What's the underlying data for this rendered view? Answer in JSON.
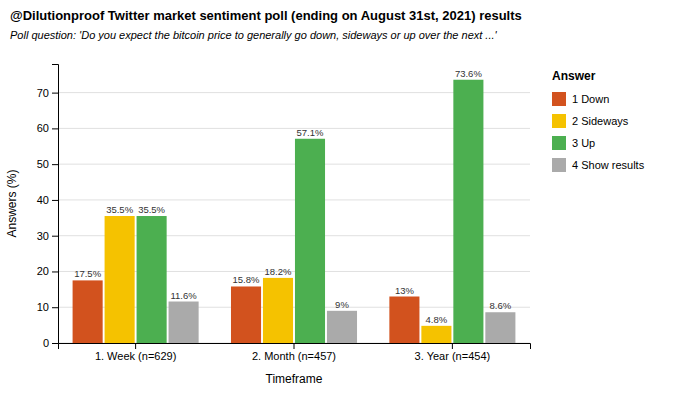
{
  "chart_data": {
    "type": "bar",
    "title": "@Dilutionproof Twitter market sentiment poll (ending on August 31st, 2021) results",
    "subtitle": "Poll question: 'Do you expect the bitcoin price to generally go down, sideways or up over the next ...'",
    "xlabel": "Timeframe",
    "ylabel": "Answers (%)",
    "legend_title": "Answer",
    "categories": [
      "1. Week (n=629)",
      "2. Month (n=457)",
      "3. Year (n=454)"
    ],
    "series": [
      {
        "name": "1 Down",
        "color": "#D2521E",
        "values": [
          17.5,
          15.8,
          13.0
        ],
        "value_labels": [
          "17.5%",
          "15.8%",
          "13%"
        ]
      },
      {
        "name": "2 Sideways",
        "color": "#F5C200",
        "values": [
          35.5,
          18.2,
          4.8
        ],
        "value_labels": [
          "35.5%",
          "18.2%",
          "4.8%"
        ]
      },
      {
        "name": "3 Up",
        "color": "#4CAF50",
        "values": [
          35.5,
          57.1,
          73.6
        ],
        "value_labels": [
          "35.5%",
          "57.1%",
          "73.6%"
        ]
      },
      {
        "name": "4 Show results",
        "color": "#AAAAAA",
        "values": [
          11.6,
          9.0,
          8.6
        ],
        "value_labels": [
          "11.6%",
          "9%",
          "8.6%"
        ]
      }
    ],
    "ylim": [
      0,
      78
    ],
    "yticks": [
      0,
      10,
      20,
      30,
      40,
      50,
      60,
      70
    ],
    "grid": true,
    "legend": "right",
    "data_labels": true
  }
}
